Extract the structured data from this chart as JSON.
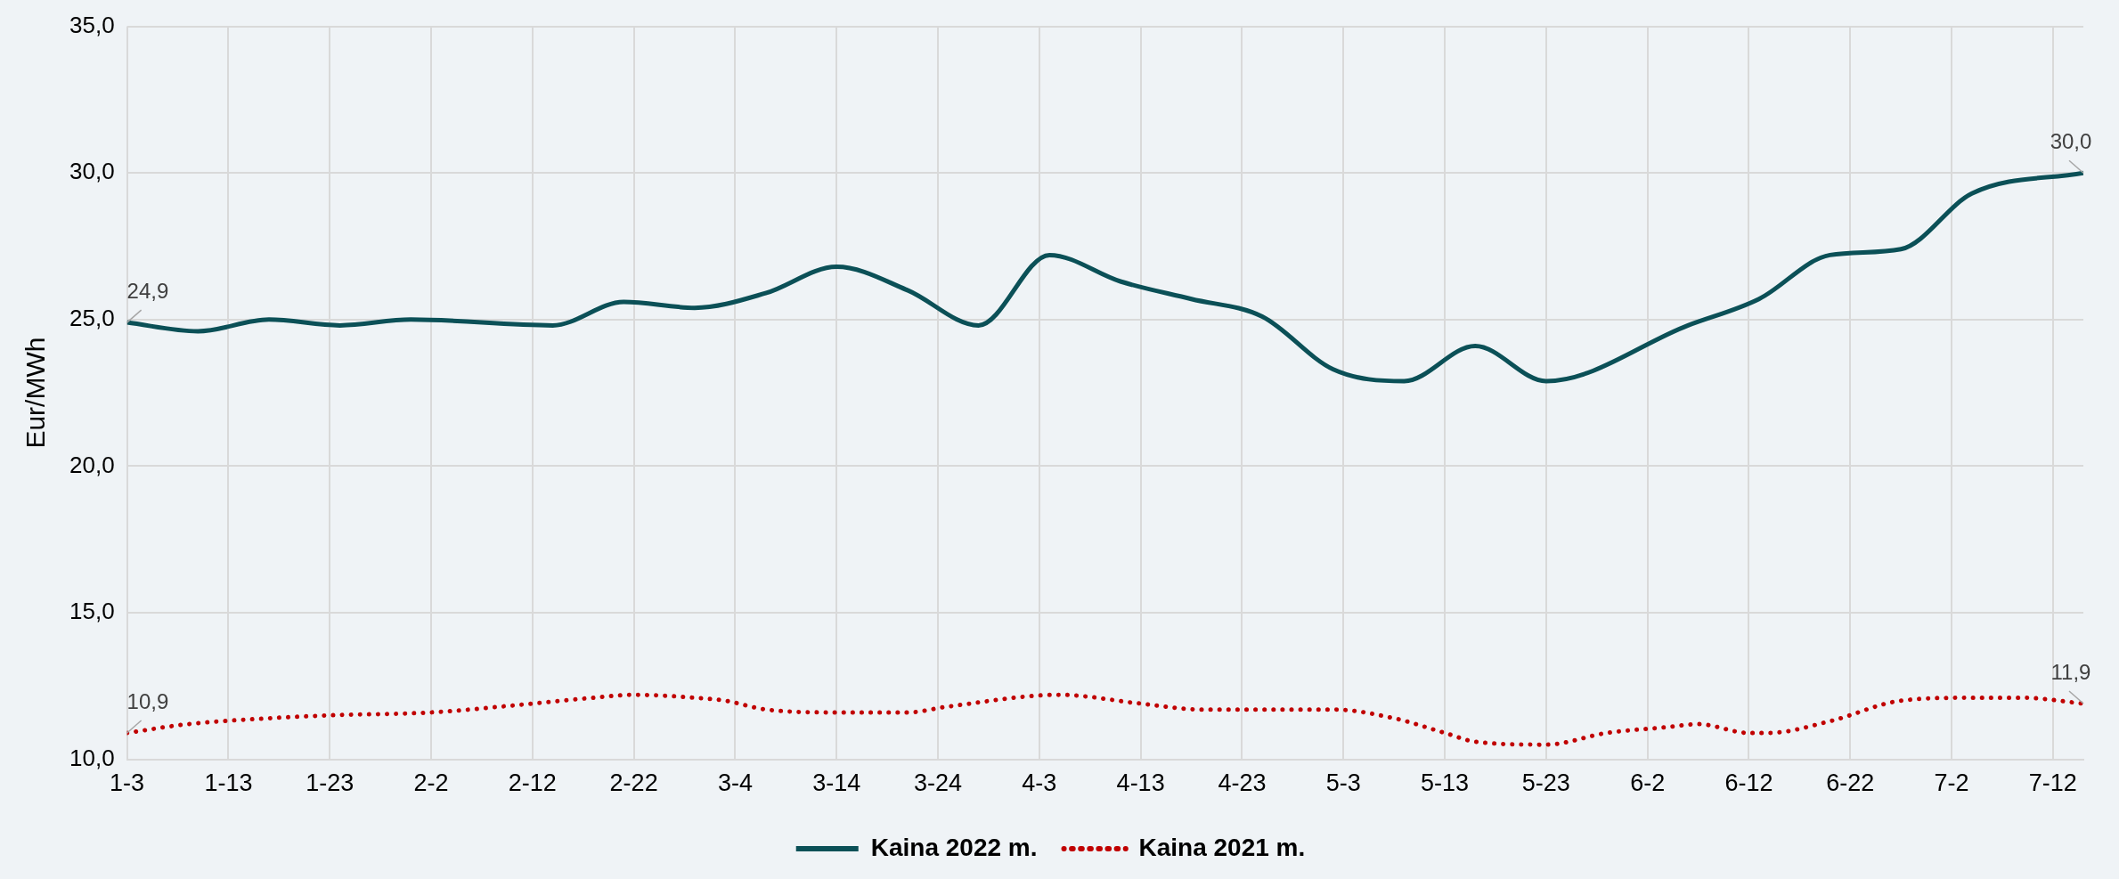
{
  "chart_data": {
    "type": "line",
    "ylabel": "Eur/MWh",
    "xlim": [
      "--01-03",
      "--07-15"
    ],
    "xticks": [
      {
        "value": "--01-03",
        "label": "1-3"
      },
      {
        "value": "--01-13",
        "label": "1-13"
      },
      {
        "value": "--01-23",
        "label": "1-23"
      },
      {
        "value": "--02-02",
        "label": "2-2"
      },
      {
        "value": "--02-12",
        "label": "2-12"
      },
      {
        "value": "--02-22",
        "label": "2-22"
      },
      {
        "value": "--03-04",
        "label": "3-4"
      },
      {
        "value": "--03-14",
        "label": "3-14"
      },
      {
        "value": "--03-24",
        "label": "3-24"
      },
      {
        "value": "--04-03",
        "label": "4-3"
      },
      {
        "value": "--04-13",
        "label": "4-13"
      },
      {
        "value": "--04-23",
        "label": "4-23"
      },
      {
        "value": "--05-03",
        "label": "5-3"
      },
      {
        "value": "--05-13",
        "label": "5-13"
      },
      {
        "value": "--05-23",
        "label": "5-23"
      },
      {
        "value": "--06-02",
        "label": "6-2"
      },
      {
        "value": "--06-12",
        "label": "6-12"
      },
      {
        "value": "--06-22",
        "label": "6-22"
      },
      {
        "value": "--07-02",
        "label": "7-2"
      },
      {
        "value": "--07-12",
        "label": "7-12"
      }
    ],
    "ylim": [
      10,
      35
    ],
    "yticks": [
      {
        "value": 10,
        "label": "10,0"
      },
      {
        "value": 15,
        "label": "15,0"
      },
      {
        "value": 20,
        "label": "20,0"
      },
      {
        "value": 25,
        "label": "25,0"
      },
      {
        "value": 30,
        "label": "30,0"
      },
      {
        "value": 35,
        "label": "35,0"
      }
    ],
    "grid": true,
    "legend": "bottom",
    "marker": "none",
    "series": [
      {
        "name": "Kaina 2022 m.",
        "color": "#0b5057",
        "line_style": "solid",
        "x": [
          "--01-03",
          "--01-10",
          "--01-17",
          "--01-24",
          "--01-31",
          "--02-14",
          "--02-21",
          "--02-28",
          "--03-07",
          "--03-14",
          "--03-21",
          "--03-28",
          "--04-04",
          "--04-11",
          "--04-18",
          "--04-25",
          "--05-02",
          "--05-09",
          "--05-16",
          "--05-23",
          "--06-06",
          "--06-13",
          "--06-20",
          "--06-27",
          "--07-04",
          "--07-15"
        ],
        "values": [
          24.9,
          24.6,
          25.0,
          24.8,
          25.0,
          24.8,
          25.6,
          25.4,
          25.9,
          26.8,
          26.0,
          24.8,
          27.2,
          26.3,
          25.7,
          25.1,
          23.3,
          22.9,
          24.1,
          22.9,
          24.8,
          25.7,
          27.2,
          27.4,
          29.3,
          30.0
        ],
        "value_labels": [
          "24,9",
          null,
          null,
          null,
          null,
          null,
          null,
          null,
          null,
          null,
          null,
          null,
          null,
          null,
          null,
          null,
          null,
          null,
          null,
          null,
          null,
          null,
          null,
          null,
          null,
          "30,0"
        ]
      },
      {
        "name": "Kaina 2021 m.",
        "color": "#c00000",
        "line_style": "dotted",
        "x": [
          "--01-03",
          "--01-09",
          "--01-17",
          "--01-23",
          "--02-02",
          "--02-12",
          "--02-18",
          "--02-22",
          "--02-28",
          "--03-03",
          "--03-07",
          "--03-14",
          "--03-21",
          "--03-25",
          "--04-05",
          "--04-13",
          "--04-19",
          "--04-28",
          "--05-02",
          "--05-08",
          "--05-13",
          "--05-16",
          "--05-23",
          "--05-29",
          "--06-04",
          "--06-07",
          "--06-12",
          "--06-14",
          "--06-20",
          "--06-27",
          "--07-04",
          "--07-09",
          "--07-15"
        ],
        "values": [
          10.9,
          11.2,
          11.4,
          11.5,
          11.6,
          11.9,
          12.1,
          12.2,
          12.1,
          12.0,
          11.7,
          11.6,
          11.6,
          11.8,
          12.2,
          11.9,
          11.7,
          11.7,
          11.7,
          11.4,
          10.9,
          10.6,
          10.5,
          10.9,
          11.1,
          11.2,
          10.9,
          10.9,
          11.3,
          12.0,
          12.1,
          12.1,
          11.9
        ],
        "value_labels": [
          "10,9",
          null,
          null,
          null,
          null,
          null,
          null,
          null,
          null,
          null,
          null,
          null,
          null,
          null,
          null,
          null,
          null,
          null,
          null,
          null,
          null,
          null,
          null,
          null,
          null,
          null,
          null,
          null,
          null,
          null,
          null,
          null,
          "11,9"
        ]
      }
    ]
  }
}
